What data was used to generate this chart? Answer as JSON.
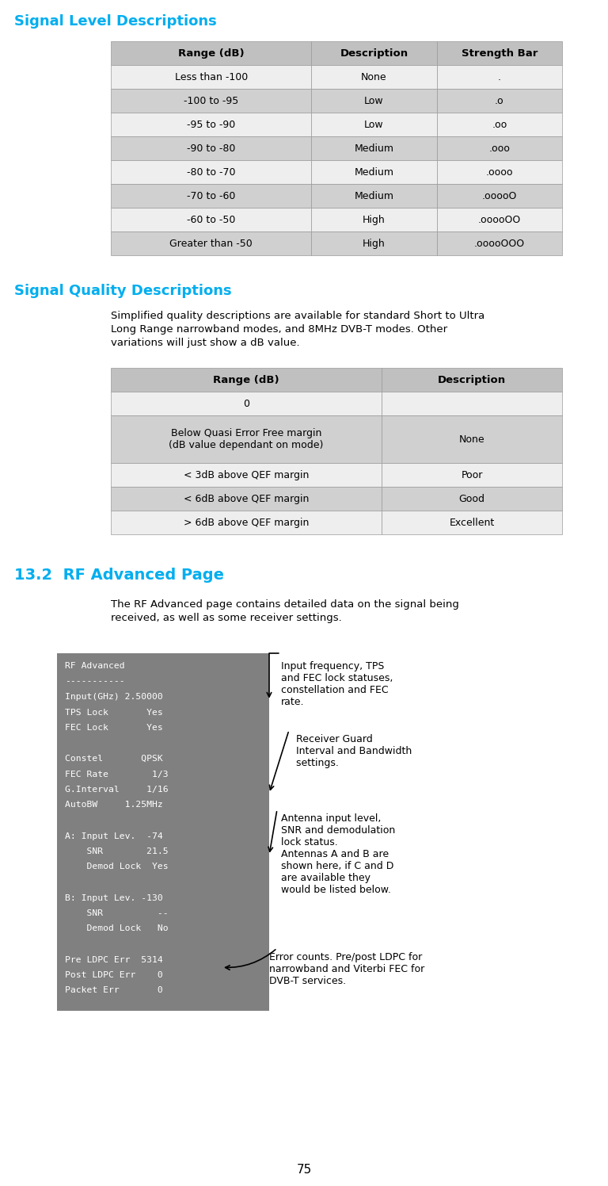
{
  "page_number": "75",
  "bg_color": "#ffffff",
  "cyan_color": "#00AEEF",
  "section1_title": "Signal Level Descriptions",
  "table1_headers": [
    "Range (dB)",
    "Description",
    "Strength Bar"
  ],
  "table1_rows": [
    [
      "Less than -100",
      "None",
      "."
    ],
    [
      "-100 to -95",
      "Low",
      ".o"
    ],
    [
      "-95 to -90",
      "Low",
      ".oo"
    ],
    [
      "-90 to -80",
      "Medium",
      ".ooo"
    ],
    [
      "-80 to -70",
      "Medium",
      ".oooo"
    ],
    [
      "-70 to -60",
      "Medium",
      ".ooooO"
    ],
    [
      "-60 to -50",
      "High",
      ".ooooOO"
    ],
    [
      "Greater than -50",
      "High",
      ".ooooOOO"
    ]
  ],
  "table1_alt_rows": [
    1,
    3,
    5,
    7
  ],
  "section2_title": "Signal Quality Descriptions",
  "section2_body": "Simplified quality descriptions are available for standard Short to Ultra\nLong Range narrowband modes, and 8MHz DVB-T modes. Other\nvariations will just show a dB value.",
  "table2_headers": [
    "Range (dB)",
    "Description"
  ],
  "table2_rows": [
    [
      "0",
      ""
    ],
    [
      "Below Quasi Error Free margin\n(dB value dependant on mode)",
      "None"
    ],
    [
      "< 3dB above QEF margin",
      "Poor"
    ],
    [
      "< 6dB above QEF margin",
      "Good"
    ],
    [
      "> 6dB above QEF margin",
      "Excellent"
    ]
  ],
  "table2_alt_rows": [
    1,
    3
  ],
  "section3_title": "13.2  RF Advanced Page",
  "section3_body": "The RF Advanced page contains detailed data on the signal being\nreceived, as well as some receiver settings.",
  "terminal_lines": [
    "RF Advanced",
    "-----------",
    "Input(GHz) 2.50000",
    "TPS Lock       Yes",
    "FEC Lock       Yes",
    "",
    "Constel       QPSK",
    "FEC Rate        1/3",
    "G.Interval     1/16",
    "AutoBW     1.25MHz",
    "",
    "A: Input Lev.  -74",
    "    SNR        21.5",
    "    Demod Lock  Yes",
    "",
    "B: Input Lev. -130",
    "    SNR          --",
    "    Demod Lock   No",
    "",
    "Pre LDPC Err  5314",
    "Post LDPC Err    0",
    "Packet Err       0"
  ],
  "header_bg": "#c0c0c0",
  "alt_row_bg": "#d0d0d0",
  "white_row_bg": "#eeeeee",
  "terminal_bg": "#808080",
  "terminal_text": "#ffffff"
}
